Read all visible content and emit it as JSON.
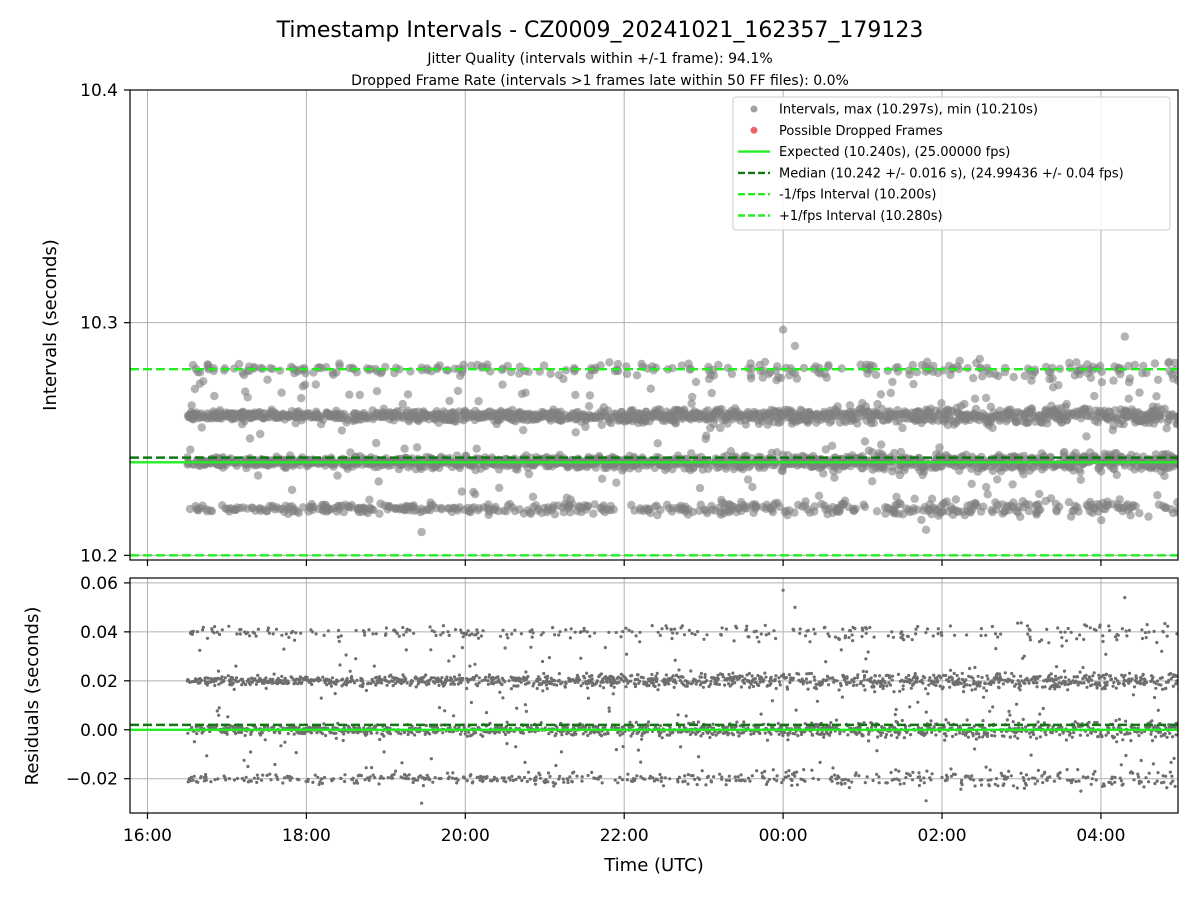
{
  "title": "Timestamp Intervals - CZ0009_20241021_162357_179123",
  "subtitle_lines": [
    "Jitter Quality (intervals within +/-1 frame): 94.1%",
    "Dropped Frame Rate (intervals >1 frames late within 50 FF files): 0.0%"
  ],
  "colors": {
    "points": "#808080",
    "dropped": "#e8474b",
    "expected": "#22ee22",
    "median": "#117711",
    "interval": "#22ee22",
    "grid": "#b0b0b0"
  },
  "chart_data": [
    {
      "type": "scatter",
      "ylabel": "Intervals (seconds)",
      "xlabel": "",
      "x_unit": "hours (clock time, continuing past midnight)",
      "xlim": [
        15.78,
        28.97
      ],
      "ylim": [
        10.198,
        10.4
      ],
      "x_ticks": [
        16,
        18,
        20,
        22,
        24,
        26,
        28
      ],
      "y_ticks": [
        10.2,
        10.3,
        10.4
      ],
      "y_tick_labels": [
        "10.2",
        "10.3",
        "10.4"
      ],
      "grid": true,
      "legend_position": "top-right",
      "legend": [
        {
          "kind": "marker",
          "color": "#a0a0a0",
          "label": "Intervals, max (10.297s), min (10.210s)"
        },
        {
          "kind": "marker",
          "color": "#ee6666",
          "label": "Possible Dropped Frames"
        },
        {
          "kind": "solid",
          "color": "#22ee22",
          "label": "Expected (10.240s), (25.00000 fps)"
        },
        {
          "kind": "dashed",
          "color": "#117711",
          "label": "Median (10.242 +/- 0.016 s), (24.99436 +/- 0.04 fps)"
        },
        {
          "kind": "dashed",
          "color": "#22ee22",
          "label": "-1/fps Interval (10.200s)"
        },
        {
          "kind": "dashed",
          "color": "#22ee22",
          "label": "+1/fps Interval (10.280s)"
        }
      ],
      "reference_lines": [
        {
          "name": "expected",
          "y": 10.24,
          "style": "solid"
        },
        {
          "name": "median",
          "y": 10.242,
          "style": "dashed"
        },
        {
          "name": "minus-interval",
          "y": 10.2,
          "style": "dashed"
        },
        {
          "name": "plus-interval",
          "y": 10.28,
          "style": "dashed"
        }
      ],
      "series": [
        {
          "x_range": [
            16.5,
            29.0
          ],
          "levels": [
            10.22,
            10.24,
            10.26,
            10.28
          ],
          "level_weights": [
            0.14,
            0.36,
            0.36,
            0.08
          ],
          "scatter_fraction": 0.06,
          "max": 10.297,
          "min": 10.21
        }
      ]
    },
    {
      "type": "scatter",
      "ylabel": "Residuals (seconds)",
      "xlabel": "Time (UTC)",
      "x_unit": "hours (clock time, continuing past midnight)",
      "xlim": [
        15.78,
        28.97
      ],
      "ylim": [
        -0.034,
        0.062
      ],
      "x_ticks": [
        16,
        18,
        20,
        22,
        24,
        26,
        28
      ],
      "x_tick_labels": [
        "16:00",
        "18:00",
        "20:00",
        "22:00",
        "00:00",
        "02:00",
        "04:00"
      ],
      "y_ticks": [
        -0.02,
        0.0,
        0.02,
        0.04,
        0.06
      ],
      "y_tick_labels": [
        "−0.02",
        "0.00",
        "0.02",
        "0.04",
        "0.06"
      ],
      "grid": true,
      "reference_lines": [
        {
          "name": "zero",
          "y": 0.0,
          "style": "solid"
        },
        {
          "name": "median-residual",
          "y": 0.002,
          "style": "dashed"
        }
      ],
      "series": [
        {
          "x_range": [
            16.5,
            29.0
          ],
          "levels": [
            -0.02,
            0.0,
            0.02,
            0.04
          ],
          "level_weights": [
            0.14,
            0.36,
            0.36,
            0.08
          ],
          "scatter_fraction": 0.06,
          "max": 0.057,
          "min": -0.03
        }
      ]
    }
  ]
}
